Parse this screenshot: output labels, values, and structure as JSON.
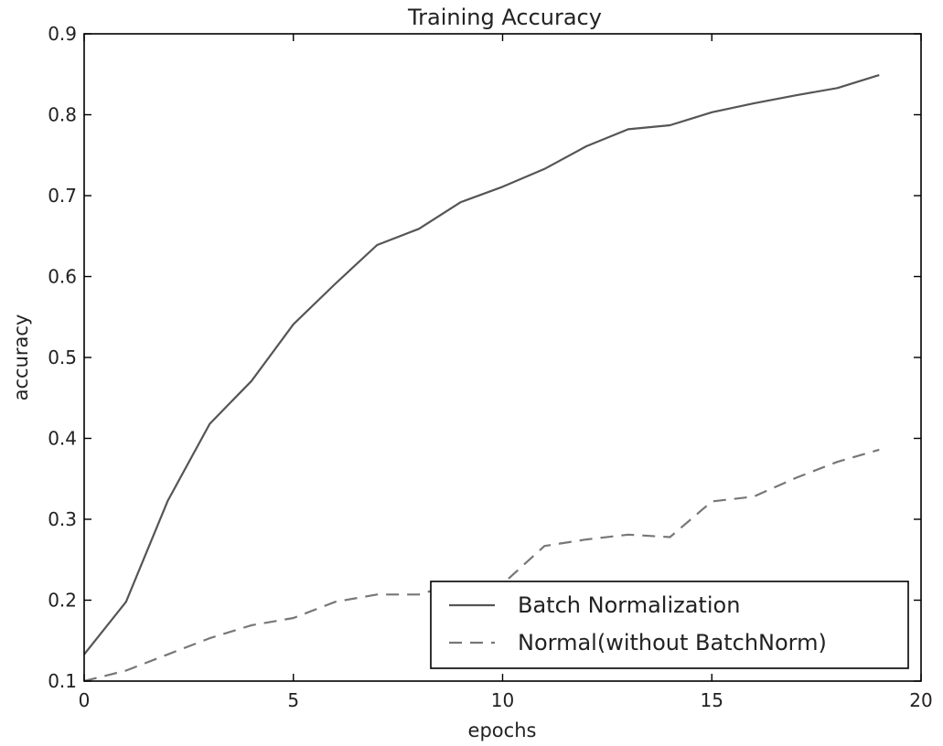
{
  "chart_data": {
    "type": "line",
    "title": "Training Accuracy",
    "xlabel": "epochs",
    "ylabel": "accuracy",
    "xlim": [
      0,
      20
    ],
    "ylim": [
      0.1,
      0.9
    ],
    "xticks": [
      0,
      5,
      10,
      15,
      20
    ],
    "xtick_labels": [
      "0",
      "5",
      "10",
      "15",
      "20"
    ],
    "yticks": [
      0.1,
      0.2,
      0.3,
      0.4,
      0.5,
      0.6,
      0.7,
      0.8,
      0.9
    ],
    "ytick_labels": [
      "0.1",
      "0.2",
      "0.3",
      "0.4",
      "0.5",
      "0.6",
      "0.7",
      "0.8",
      "0.9"
    ],
    "grid": false,
    "legend_position": "bottom-right",
    "x": [
      0,
      1,
      2,
      3,
      4,
      5,
      6,
      7,
      8,
      9,
      10,
      11,
      12,
      13,
      14,
      15,
      16,
      17,
      18,
      19
    ],
    "series": [
      {
        "name": "Batch Normalization",
        "style": "solid",
        "color": "#555555",
        "values": [
          0.133,
          0.198,
          0.323,
          0.418,
          0.471,
          0.541,
          0.591,
          0.639,
          0.659,
          0.692,
          0.711,
          0.733,
          0.761,
          0.782,
          0.787,
          0.803,
          0.814,
          0.824,
          0.833,
          0.849
        ]
      },
      {
        "name": "Normal(without BatchNorm)",
        "style": "dashed",
        "color": "#777777",
        "values": [
          0.1,
          0.113,
          0.133,
          0.153,
          0.169,
          0.178,
          0.198,
          0.207,
          0.207,
          0.222,
          0.22,
          0.267,
          0.275,
          0.281,
          0.278,
          0.322,
          0.328,
          0.351,
          0.371,
          0.386
        ]
      }
    ]
  }
}
